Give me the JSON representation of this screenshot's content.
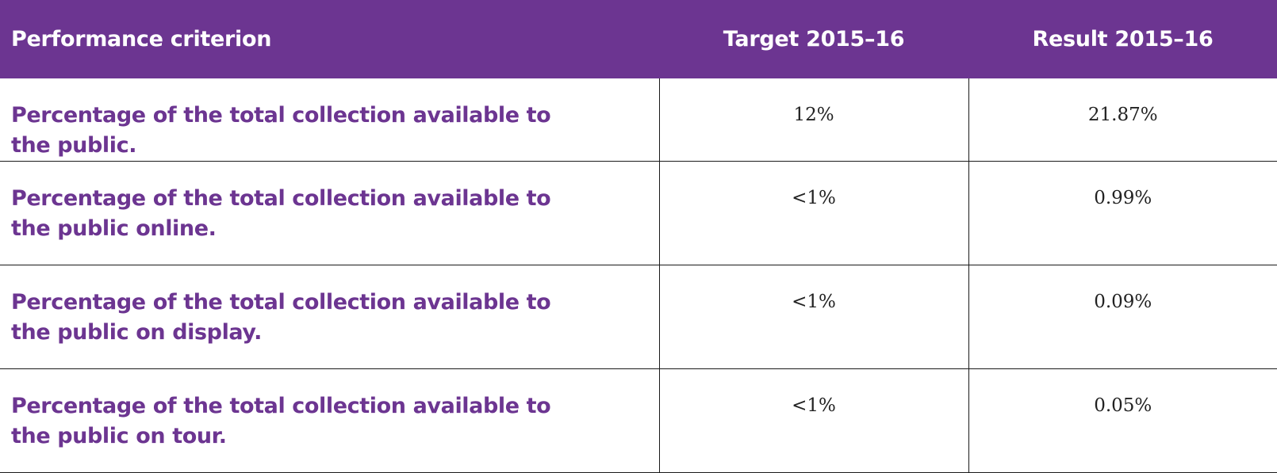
{
  "table": {
    "headers": {
      "criterion": "Performance criterion",
      "target": "Target 2015–16",
      "result": "Result 2015–16"
    },
    "rows": [
      {
        "criterion": "Percentage of the total collection available to the public.",
        "target": "12%",
        "result": "21.87%"
      },
      {
        "criterion": "Percentage of the total collection available to the public online.",
        "target": "<1%",
        "result": "0.99%"
      },
      {
        "criterion": "Percentage of the total collection available to the public on display.",
        "target": "<1%",
        "result": "0.09%"
      },
      {
        "criterion": "Percentage of the total collection available to the public on tour.",
        "target": "<1%",
        "result": "0.05%"
      }
    ]
  },
  "colors": {
    "header_background": "#6c3591",
    "header_text": "#ffffff",
    "criterion_text": "#6c3591",
    "rule": "#1a1a1a"
  }
}
